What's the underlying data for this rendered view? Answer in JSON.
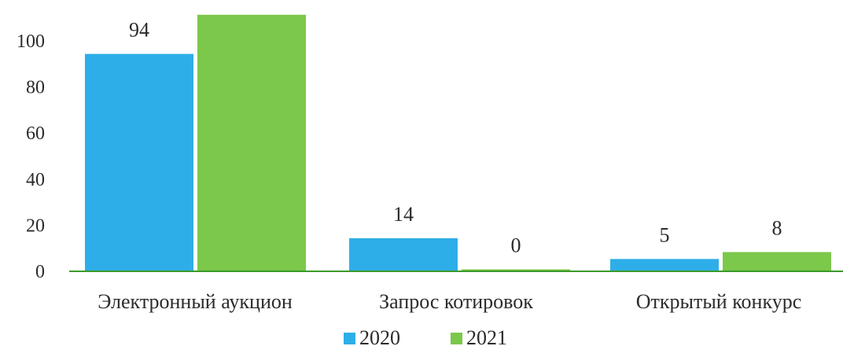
{
  "chart_data": {
    "type": "bar",
    "title": "",
    "xlabel": "",
    "ylabel": "",
    "categories": [
      "Электронный аукцион",
      "Запрос котировок",
      "Открытый конкурс"
    ],
    "series": [
      {
        "name": "2020",
        "values": [
          94,
          14,
          5
        ],
        "color": "#2eaee8",
        "labels": [
          "94",
          "14",
          "5"
        ]
      },
      {
        "name": "2021",
        "values": [
          111,
          0,
          8
        ],
        "color": "#7cc84a",
        "labels": [
          "",
          "0",
          "8"
        ]
      }
    ],
    "ylim": [
      0,
      110
    ],
    "yticks": [
      "0",
      "20",
      "40",
      "60",
      "80",
      "100"
    ],
    "legend": "bottom",
    "grid": false
  }
}
